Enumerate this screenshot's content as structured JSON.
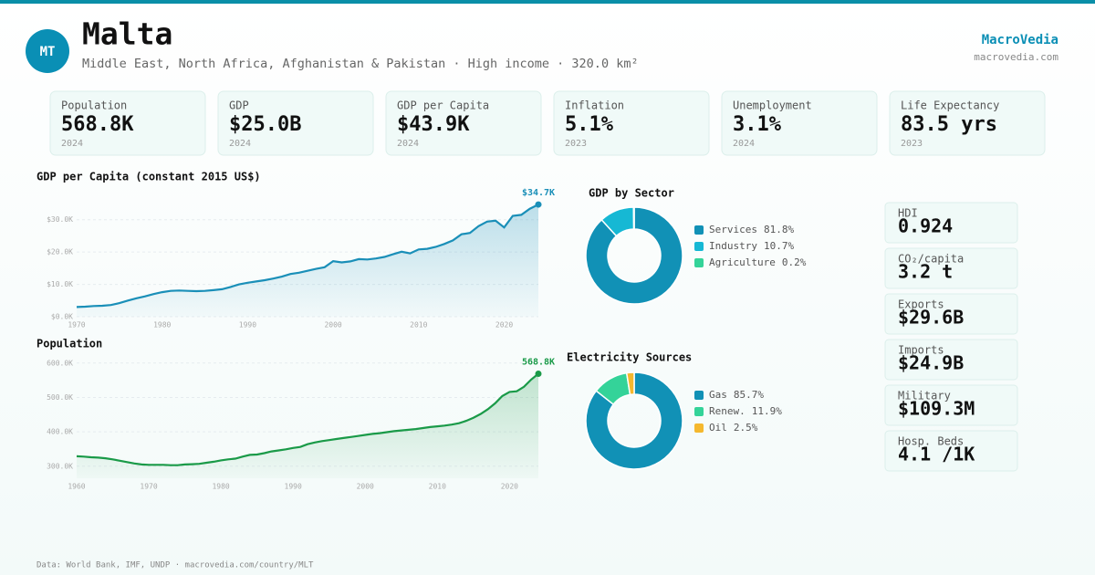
{
  "header": {
    "badge": "MT",
    "title": "Malta",
    "subtitle": "Middle East, North Africa, Afghanistan & Pakistan · High income · 320.0 km²",
    "brand": "MacroVedia",
    "domain": "macrovedia.com"
  },
  "stats": [
    {
      "label": "Population",
      "value": "568.8K",
      "year": "2024"
    },
    {
      "label": "GDP",
      "value": "$25.0B",
      "year": "2024"
    },
    {
      "label": "GDP per Capita",
      "value": "$43.9K",
      "year": "2024"
    },
    {
      "label": "Inflation",
      "value": "5.1%",
      "year": "2023"
    },
    {
      "label": "Unemployment",
      "value": "3.1%",
      "year": "2024"
    },
    {
      "label": "Life Expectancy",
      "value": "83.5 yrs",
      "year": "2023"
    }
  ],
  "side_stats": [
    {
      "label": "HDI",
      "value": "0.924"
    },
    {
      "label": "CO₂/capita",
      "value": "3.2 t"
    },
    {
      "label": "Exports",
      "value": "$29.6B"
    },
    {
      "label": "Imports",
      "value": "$24.9B"
    },
    {
      "label": "Military",
      "value": "$109.3M"
    },
    {
      "label": "Hosp. Beds",
      "value": "4.1 /1K"
    }
  ],
  "chart_data": [
    {
      "type": "line",
      "title": "GDP per Capita (constant 2015 US$)",
      "color": "#1a8fb8",
      "grid": true,
      "x": [
        1970,
        1971,
        1972,
        1973,
        1974,
        1975,
        1976,
        1977,
        1978,
        1979,
        1980,
        1981,
        1982,
        1983,
        1984,
        1985,
        1986,
        1987,
        1988,
        1989,
        1990,
        1991,
        1992,
        1993,
        1994,
        1995,
        1996,
        1997,
        1998,
        1999,
        2000,
        2001,
        2002,
        2003,
        2004,
        2005,
        2006,
        2007,
        2008,
        2009,
        2010,
        2011,
        2012,
        2013,
        2014,
        2015,
        2016,
        2017,
        2018,
        2019,
        2020,
        2021,
        2022,
        2023,
        2024
      ],
      "values": [
        3000,
        3100,
        3300,
        3400,
        3600,
        4200,
        5000,
        5700,
        6300,
        7000,
        7600,
        8000,
        8100,
        8000,
        7900,
        8000,
        8200,
        8500,
        9200,
        10000,
        10500,
        10900,
        11300,
        11800,
        12400,
        13200,
        13600,
        14200,
        14800,
        15300,
        17200,
        16800,
        17100,
        17800,
        17700,
        18000,
        18500,
        19300,
        20100,
        19600,
        20800,
        21000,
        21600,
        22500,
        23600,
        25500,
        25900,
        28000,
        29400,
        29700,
        27600,
        31200,
        31500,
        33400,
        34700
      ],
      "end_label": "$34.7K",
      "xlim": [
        1970,
        2024
      ],
      "xticks": [
        1970,
        1980,
        1990,
        2000,
        2010,
        2020
      ],
      "ylim": [
        0,
        35000
      ],
      "yticks": [
        {
          "value": 0,
          "label": "$0.0K"
        },
        {
          "value": 10000,
          "label": "$10.0K"
        },
        {
          "value": 20000,
          "label": "$20.0K"
        },
        {
          "value": 30000,
          "label": "$30.0K"
        }
      ]
    },
    {
      "type": "line",
      "title": "Population",
      "color": "#1a9a48",
      "grid": true,
      "x": [
        1960,
        1961,
        1962,
        1963,
        1964,
        1965,
        1966,
        1967,
        1968,
        1969,
        1970,
        1971,
        1972,
        1973,
        1974,
        1975,
        1976,
        1977,
        1978,
        1979,
        1980,
        1981,
        1982,
        1983,
        1984,
        1985,
        1986,
        1987,
        1988,
        1989,
        1990,
        1991,
        1992,
        1993,
        1994,
        1995,
        1996,
        1997,
        1998,
        1999,
        2000,
        2001,
        2002,
        2003,
        2004,
        2005,
        2006,
        2007,
        2008,
        2009,
        2010,
        2011,
        2012,
        2013,
        2014,
        2015,
        2016,
        2017,
        2018,
        2019,
        2020,
        2021,
        2022,
        2023,
        2024
      ],
      "values": [
        329000,
        328000,
        326000,
        325000,
        323000,
        320000,
        316000,
        312000,
        308000,
        305000,
        304000,
        304000,
        304000,
        303000,
        303000,
        305000,
        306000,
        307000,
        310000,
        313000,
        317000,
        320000,
        322000,
        328000,
        333000,
        334000,
        338000,
        343000,
        346000,
        349000,
        353000,
        356000,
        364000,
        369000,
        373000,
        376000,
        379000,
        382000,
        385000,
        388000,
        391000,
        394000,
        396000,
        399000,
        402000,
        404000,
        406000,
        408000,
        411000,
        414000,
        416000,
        418000,
        421000,
        425000,
        432000,
        441000,
        452000,
        466000,
        483000,
        504000,
        516000,
        518000,
        531000,
        552000,
        568800
      ],
      "end_label": "568.8K",
      "xlim": [
        1960,
        2024
      ],
      "xticks": [
        1960,
        1970,
        1980,
        1990,
        2000,
        2010,
        2020
      ],
      "ylim": [
        265000,
        610000
      ],
      "yticks": [
        {
          "value": 300000,
          "label": "300.0K"
        },
        {
          "value": 400000,
          "label": "400.0K"
        },
        {
          "value": 500000,
          "label": "500.0K"
        },
        {
          "value": 600000,
          "label": "600.0K"
        }
      ]
    },
    {
      "type": "donut",
      "title": "GDP by Sector",
      "categories": [
        "Services",
        "Industry",
        "Agriculture"
      ],
      "values": [
        81.8,
        10.7,
        0.2
      ],
      "value_labels": [
        "81.8%",
        "10.7%",
        "0.2%"
      ],
      "colors": [
        "#1191b6",
        "#16b8d4",
        "#34d399"
      ]
    },
    {
      "type": "donut",
      "title": "Electricity Sources",
      "categories": [
        "Gas",
        "Renew.",
        "Oil"
      ],
      "values": [
        85.7,
        11.9,
        2.5
      ],
      "value_labels": [
        "85.7%",
        "11.9%",
        "2.5%"
      ],
      "colors": [
        "#1191b6",
        "#34d399",
        "#f5b82e"
      ]
    }
  ],
  "footer": "Data: World Bank, IMF, UNDP · macrovedia.com/country/MLT"
}
